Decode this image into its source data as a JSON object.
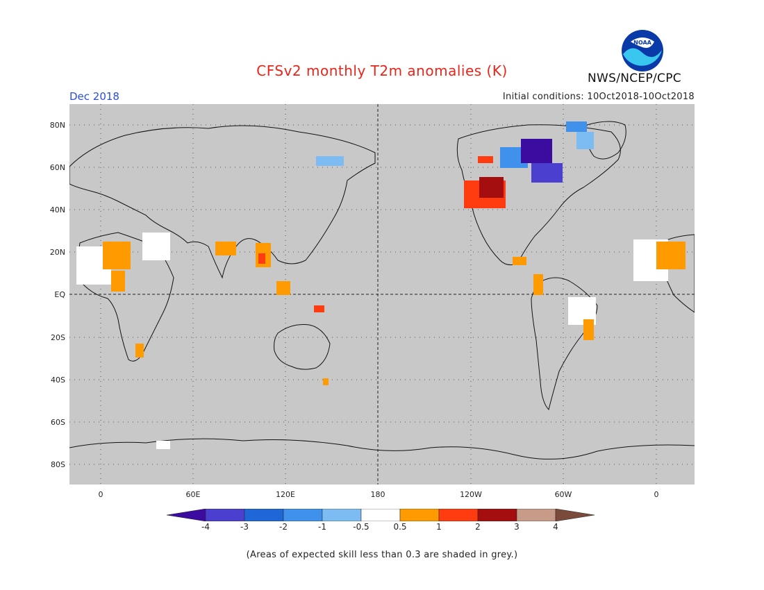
{
  "header": {
    "title": "CFSv2 monthly T2m anomalies (K)",
    "month": "Dec 2018",
    "initial_conditions": "Initial conditions: 10Oct2018-10Oct2018",
    "agency": "NWS/NCEP/CPC",
    "logo_text": "NOAA"
  },
  "axes": {
    "lat_labels": [
      "80N",
      "60N",
      "40N",
      "20N",
      "EQ",
      "20S",
      "40S",
      "60S",
      "80S"
    ],
    "lon_labels": [
      "0",
      "60E",
      "120E",
      "180",
      "120W",
      "60W",
      "0"
    ]
  },
  "colorbar": {
    "labels": [
      "-4",
      "-3",
      "-2",
      "-1",
      "-0.5",
      "0.5",
      "1",
      "2",
      "3",
      "4"
    ],
    "colors": [
      "#3c0ca0",
      "#4b3fcf",
      "#1f66d6",
      "#3f91ec",
      "#7dbcf2",
      "#ffffff",
      "#ff9a00",
      "#ff3c10",
      "#a40e0e",
      "#c89a88",
      "#7a4a3a"
    ]
  },
  "footnote": "(Areas of expected skill less than 0.3 are shaded in grey.)",
  "colors": {
    "background_grey": "#c8c8c8",
    "title_red": "#e8251a",
    "month_blue": "#2a4de0"
  }
}
